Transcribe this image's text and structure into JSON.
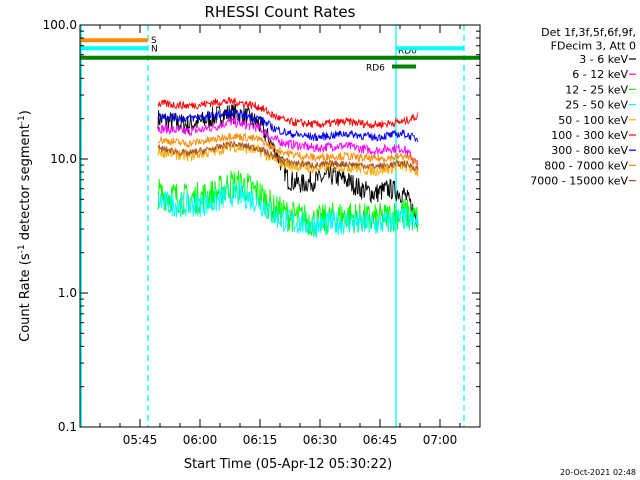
{
  "chart_data": {
    "type": "line",
    "title": "RHESSI Count Rates",
    "xlabel": "Start Time (05-Apr-12 05:30:22)",
    "ylabel_main": "Count Rate (s",
    "ylabel_sup1": "-1",
    "ylabel_mid": " detector segment",
    "ylabel_sup2": "-1",
    "ylabel_end": ")",
    "y_scale": "log",
    "ylim": [
      0.1,
      100
    ],
    "xlim_minutes": [
      0,
      100
    ],
    "yticks": [
      {
        "value": 0.1,
        "label": "0.1"
      },
      {
        "value": 1,
        "label": "1.0"
      },
      {
        "value": 10,
        "label": "10.0"
      },
      {
        "value": 100,
        "label": "100.0"
      }
    ],
    "xticks": [
      {
        "minute": 15,
        "label": "05:45"
      },
      {
        "minute": 30,
        "label": "06:00"
      },
      {
        "minute": 45,
        "label": "06:15"
      },
      {
        "minute": 60,
        "label": "06:30"
      },
      {
        "minute": 75,
        "label": "06:45"
      },
      {
        "minute": 90,
        "label": "07:00"
      }
    ],
    "legend_header": [
      "Det 1f,3f,5f,6f,9f,",
      "FDecim 3, Att 0"
    ],
    "legend_placement": "right",
    "series": [
      {
        "name": "3 - 6 keV",
        "color": "#000000",
        "base": [
          20,
          19,
          18,
          19,
          21,
          22,
          21,
          18,
          12,
          7,
          6.5,
          7,
          7.5,
          7,
          6,
          5.5,
          6,
          5.5,
          3.5
        ],
        "jitter": 0.18
      },
      {
        "name": "6 - 12 keV",
        "color": "#ff00ff",
        "base": [
          17,
          16.5,
          16,
          16.5,
          17.5,
          19,
          18,
          17,
          14,
          13,
          12.5,
          12,
          12.5,
          12.5,
          12,
          11.5,
          12,
          12,
          9
        ],
        "jitter": 0.08
      },
      {
        "name": "12 - 25 keV",
        "color": "#00ff00",
        "base": [
          5.5,
          5.3,
          5,
          5.2,
          5.5,
          6.5,
          6.3,
          5.5,
          4.2,
          3.8,
          3.6,
          3.4,
          3.6,
          3.8,
          3.6,
          3.5,
          3.7,
          4,
          3.5
        ],
        "jitter": 0.28
      },
      {
        "name": "25 - 50 keV",
        "color": "#00ffff",
        "base": [
          4.8,
          4.6,
          4.5,
          4.6,
          4.8,
          5.5,
          5.3,
          4.8,
          3.8,
          3.4,
          3.3,
          3.2,
          3.3,
          3.4,
          3.3,
          3.2,
          3.4,
          3.6,
          3.2
        ],
        "jitter": 0.22
      },
      {
        "name": "50 - 100 keV",
        "color": "#ffaa00",
        "base": [
          11.5,
          11,
          10.5,
          11,
          11.5,
          12.5,
          12,
          11.5,
          10,
          9,
          8.8,
          8.5,
          8.8,
          8.8,
          8.5,
          8.2,
          8.5,
          9,
          8
        ],
        "jitter": 0.1
      },
      {
        "name": "100 - 300 keV",
        "color": "#ff0000",
        "base": [
          26,
          25.5,
          25,
          25.5,
          26.5,
          27,
          26,
          24.5,
          21,
          19,
          18.5,
          18,
          18.5,
          19,
          18.5,
          18,
          18.5,
          19,
          21
        ],
        "jitter": 0.07
      },
      {
        "name": "300 - 800 keV",
        "color": "#0000ff",
        "base": [
          21,
          20.5,
          20,
          20.5,
          21,
          22,
          21,
          20,
          17,
          15.5,
          15,
          14.5,
          15,
          15.5,
          15,
          14.5,
          15,
          15.5,
          14
        ],
        "jitter": 0.07
      },
      {
        "name": "800 - 7000 keV",
        "color": "#ff8c00",
        "base": [
          14,
          13.5,
          13,
          13.5,
          14,
          15,
          14.5,
          14,
          12,
          11,
          10.5,
          10.2,
          10.5,
          10.5,
          10.2,
          10,
          10.2,
          10.5,
          9.5
        ],
        "jitter": 0.07
      },
      {
        "name": "7000 - 15000 keV",
        "color": "#a0522d",
        "base": [
          12,
          11.5,
          11,
          11.5,
          12,
          13,
          12.5,
          12,
          10.5,
          9.5,
          9.2,
          9,
          9.2,
          9.2,
          9,
          8.8,
          9,
          9.3,
          8.5
        ],
        "jitter": 0.06
      }
    ],
    "data_start_minute": 19.5,
    "data_end_minute": 84.5,
    "annotations": [
      {
        "label": "S",
        "color": "#ff8c00",
        "x0": 0,
        "x1": 17,
        "y": 77
      },
      {
        "label": "N",
        "color": "#00ffff",
        "x0": 0,
        "x1": 17,
        "y": 67
      },
      {
        "label": "RD6",
        "color": "#008000",
        "x0": 78,
        "x1": 84,
        "y": 49
      },
      {
        "label": "RD0",
        "color": "#008000",
        "x0": 0,
        "x1": 100,
        "y": 57
      },
      {
        "label": "",
        "color": "#00ffff",
        "x0": 79,
        "x1": 96,
        "y": 67
      }
    ],
    "vlines": [
      {
        "minute": 17,
        "color": "#00ffff",
        "style": "dashed"
      },
      {
        "minute": 79,
        "color": "#00ffff",
        "style": "solid"
      },
      {
        "minute": 96,
        "color": "#00ffff",
        "style": "dashed"
      },
      {
        "minute": 0.3,
        "color": "#00ffff",
        "style": "solid"
      }
    ],
    "timestamp": "20-Oct-2021 02:48"
  }
}
